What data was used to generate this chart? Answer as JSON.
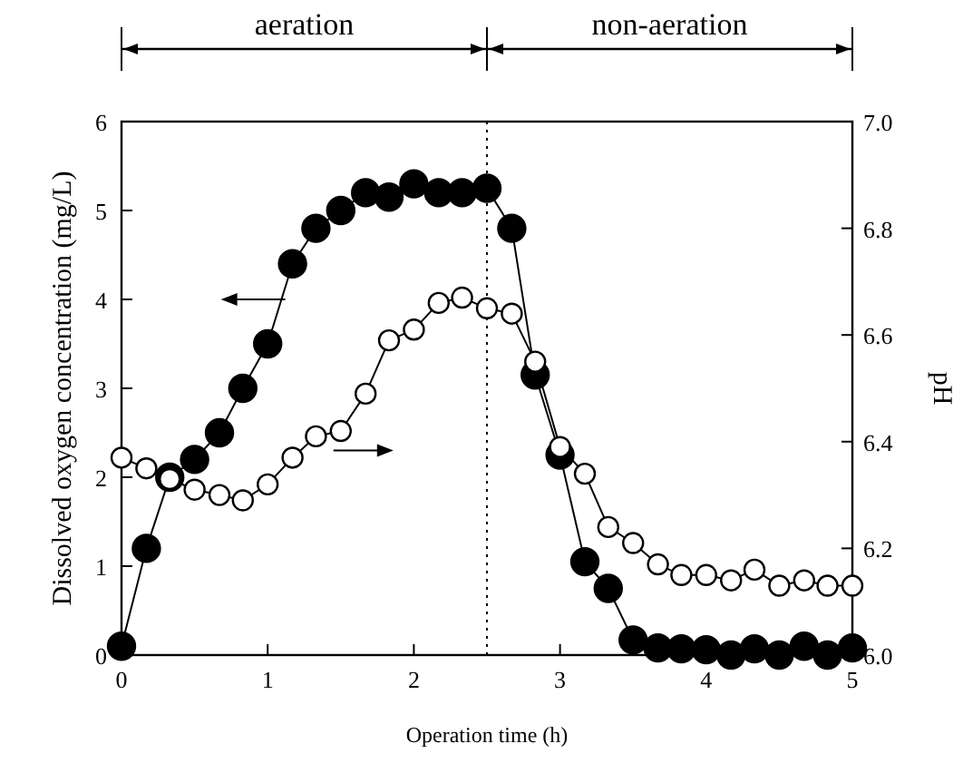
{
  "chart_data": {
    "type": "line",
    "xlabel": "Operation time (h)",
    "ylabel": "Dissolved oxygen concentration (mg/L)",
    "y2label": "pH",
    "x": [
      0,
      0.17,
      0.33,
      0.5,
      0.67,
      0.83,
      1,
      1.17,
      1.33,
      1.5,
      1.67,
      1.83,
      2,
      2.17,
      2.33,
      2.5,
      2.67,
      2.83,
      3,
      3.17,
      3.33,
      3.5,
      3.67,
      3.83,
      4,
      4.17,
      4.33,
      4.5,
      4.67,
      4.83,
      5
    ],
    "series": [
      {
        "color": "#000000",
        "values": [
          0.1,
          1.2,
          2.0,
          2.2,
          2.5,
          3.0,
          3.5,
          4.4,
          4.8,
          5.0,
          5.2,
          5.15,
          5.3,
          5.2,
          5.2,
          5.25,
          4.8,
          3.15,
          2.25,
          1.05,
          0.75,
          0.17,
          0.08,
          0.07,
          0.06,
          0,
          0.07,
          0,
          0.1,
          0,
          0.08
        ]
      },
      {
        "color": "#ffffff",
        "axis": "y2",
        "values": [
          6.37,
          6.35,
          6.33,
          6.31,
          6.3,
          6.29,
          6.32,
          6.37,
          6.41,
          6.42,
          6.49,
          6.59,
          6.61,
          6.66,
          6.67,
          6.65,
          6.64,
          6.55,
          6.39,
          6.34,
          6.24,
          6.21,
          6.17,
          6.15,
          6.15,
          6.14,
          6.16,
          6.13,
          6.14,
          6.13,
          6.13
        ]
      }
    ],
    "xlim": [
      0,
      5
    ],
    "xticks": [
      0,
      1,
      2,
      3,
      4,
      5
    ],
    "ylim": [
      0,
      6
    ],
    "yticks": [
      0,
      1,
      2,
      3,
      4,
      5,
      6
    ],
    "y2lim": [
      6,
      7
    ],
    "y2ticks": [
      {
        "value": 6,
        "label": "6.0"
      },
      6.2,
      6.4,
      6.6,
      6.8,
      {
        "value": 7,
        "label": "7.0"
      }
    ],
    "ref_lines": [
      {
        "axis": "x",
        "value": 2.5,
        "line_style": "dotted"
      }
    ],
    "annotations": [
      "aeration",
      "non-aeration"
    ],
    "marker": "circle",
    "line_style": "solid",
    "grid": false
  }
}
